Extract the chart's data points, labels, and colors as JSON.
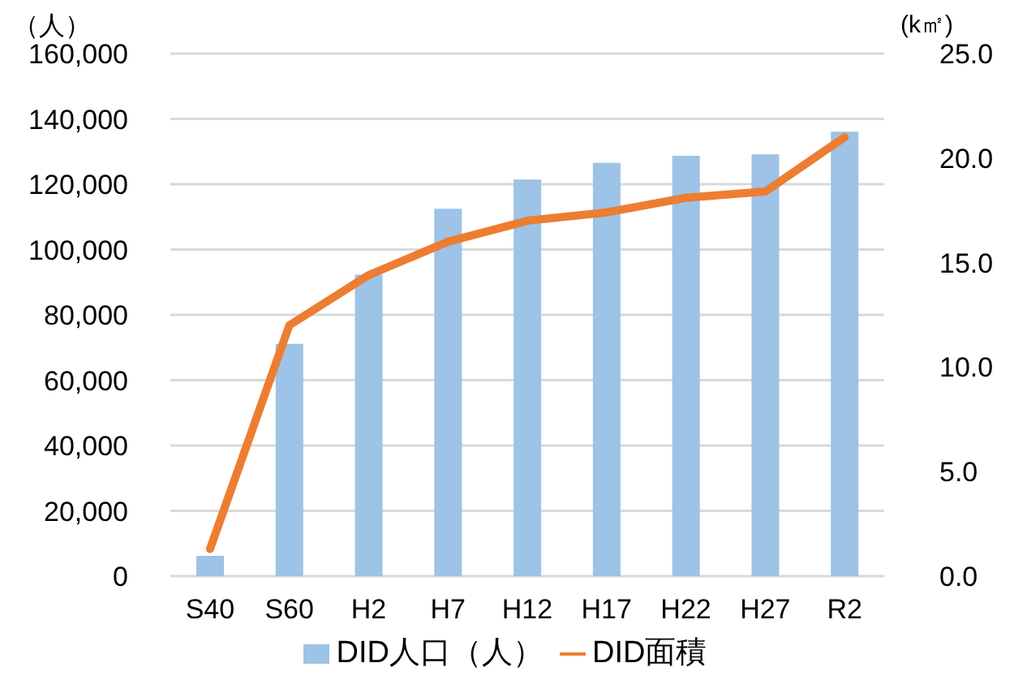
{
  "chart_data": {
    "type": "bar",
    "ylabel": "（人）",
    "y2label": "(k㎡)",
    "categories": [
      "S40",
      "S60",
      "H2",
      "H7",
      "H12",
      "H17",
      "H22",
      "H27",
      "R2"
    ],
    "series": [
      {
        "name": "DID人口（人）",
        "color": "#9dc3e6",
        "values": [
          6200,
          71100,
          92300,
          112500,
          121400,
          126500,
          128700,
          129100,
          136100
        ]
      },
      {
        "name": "DID面積",
        "type": "line",
        "axis": "y2",
        "color": "#ed7d31",
        "values": [
          1.3,
          12.0,
          14.4,
          16.0,
          17.0,
          17.4,
          18.1,
          18.4,
          21.0
        ]
      }
    ],
    "ylim": [
      0,
      160000
    ],
    "yticks": [
      {
        "value": 0,
        "label": "0"
      },
      {
        "value": 20000,
        "label": "20,000"
      },
      {
        "value": 40000,
        "label": "40,000"
      },
      {
        "value": 60000,
        "label": "60,000"
      },
      {
        "value": 80000,
        "label": "80,000"
      },
      {
        "value": 100000,
        "label": "100,000"
      },
      {
        "value": 120000,
        "label": "120,000"
      },
      {
        "value": 140000,
        "label": "140,000"
      },
      {
        "value": 160000,
        "label": "160,000"
      }
    ],
    "y2lim": [
      0,
      25
    ],
    "y2ticks": [
      {
        "value": 0,
        "label": "0.0"
      },
      {
        "value": 5,
        "label": "5.0"
      },
      {
        "value": 10,
        "label": "10.0"
      },
      {
        "value": 15,
        "label": "15.0"
      },
      {
        "value": 20,
        "label": "20.0"
      },
      {
        "value": 25,
        "label": "25.0"
      }
    ],
    "grid": "y",
    "legend": "bottom",
    "marker": "none"
  }
}
